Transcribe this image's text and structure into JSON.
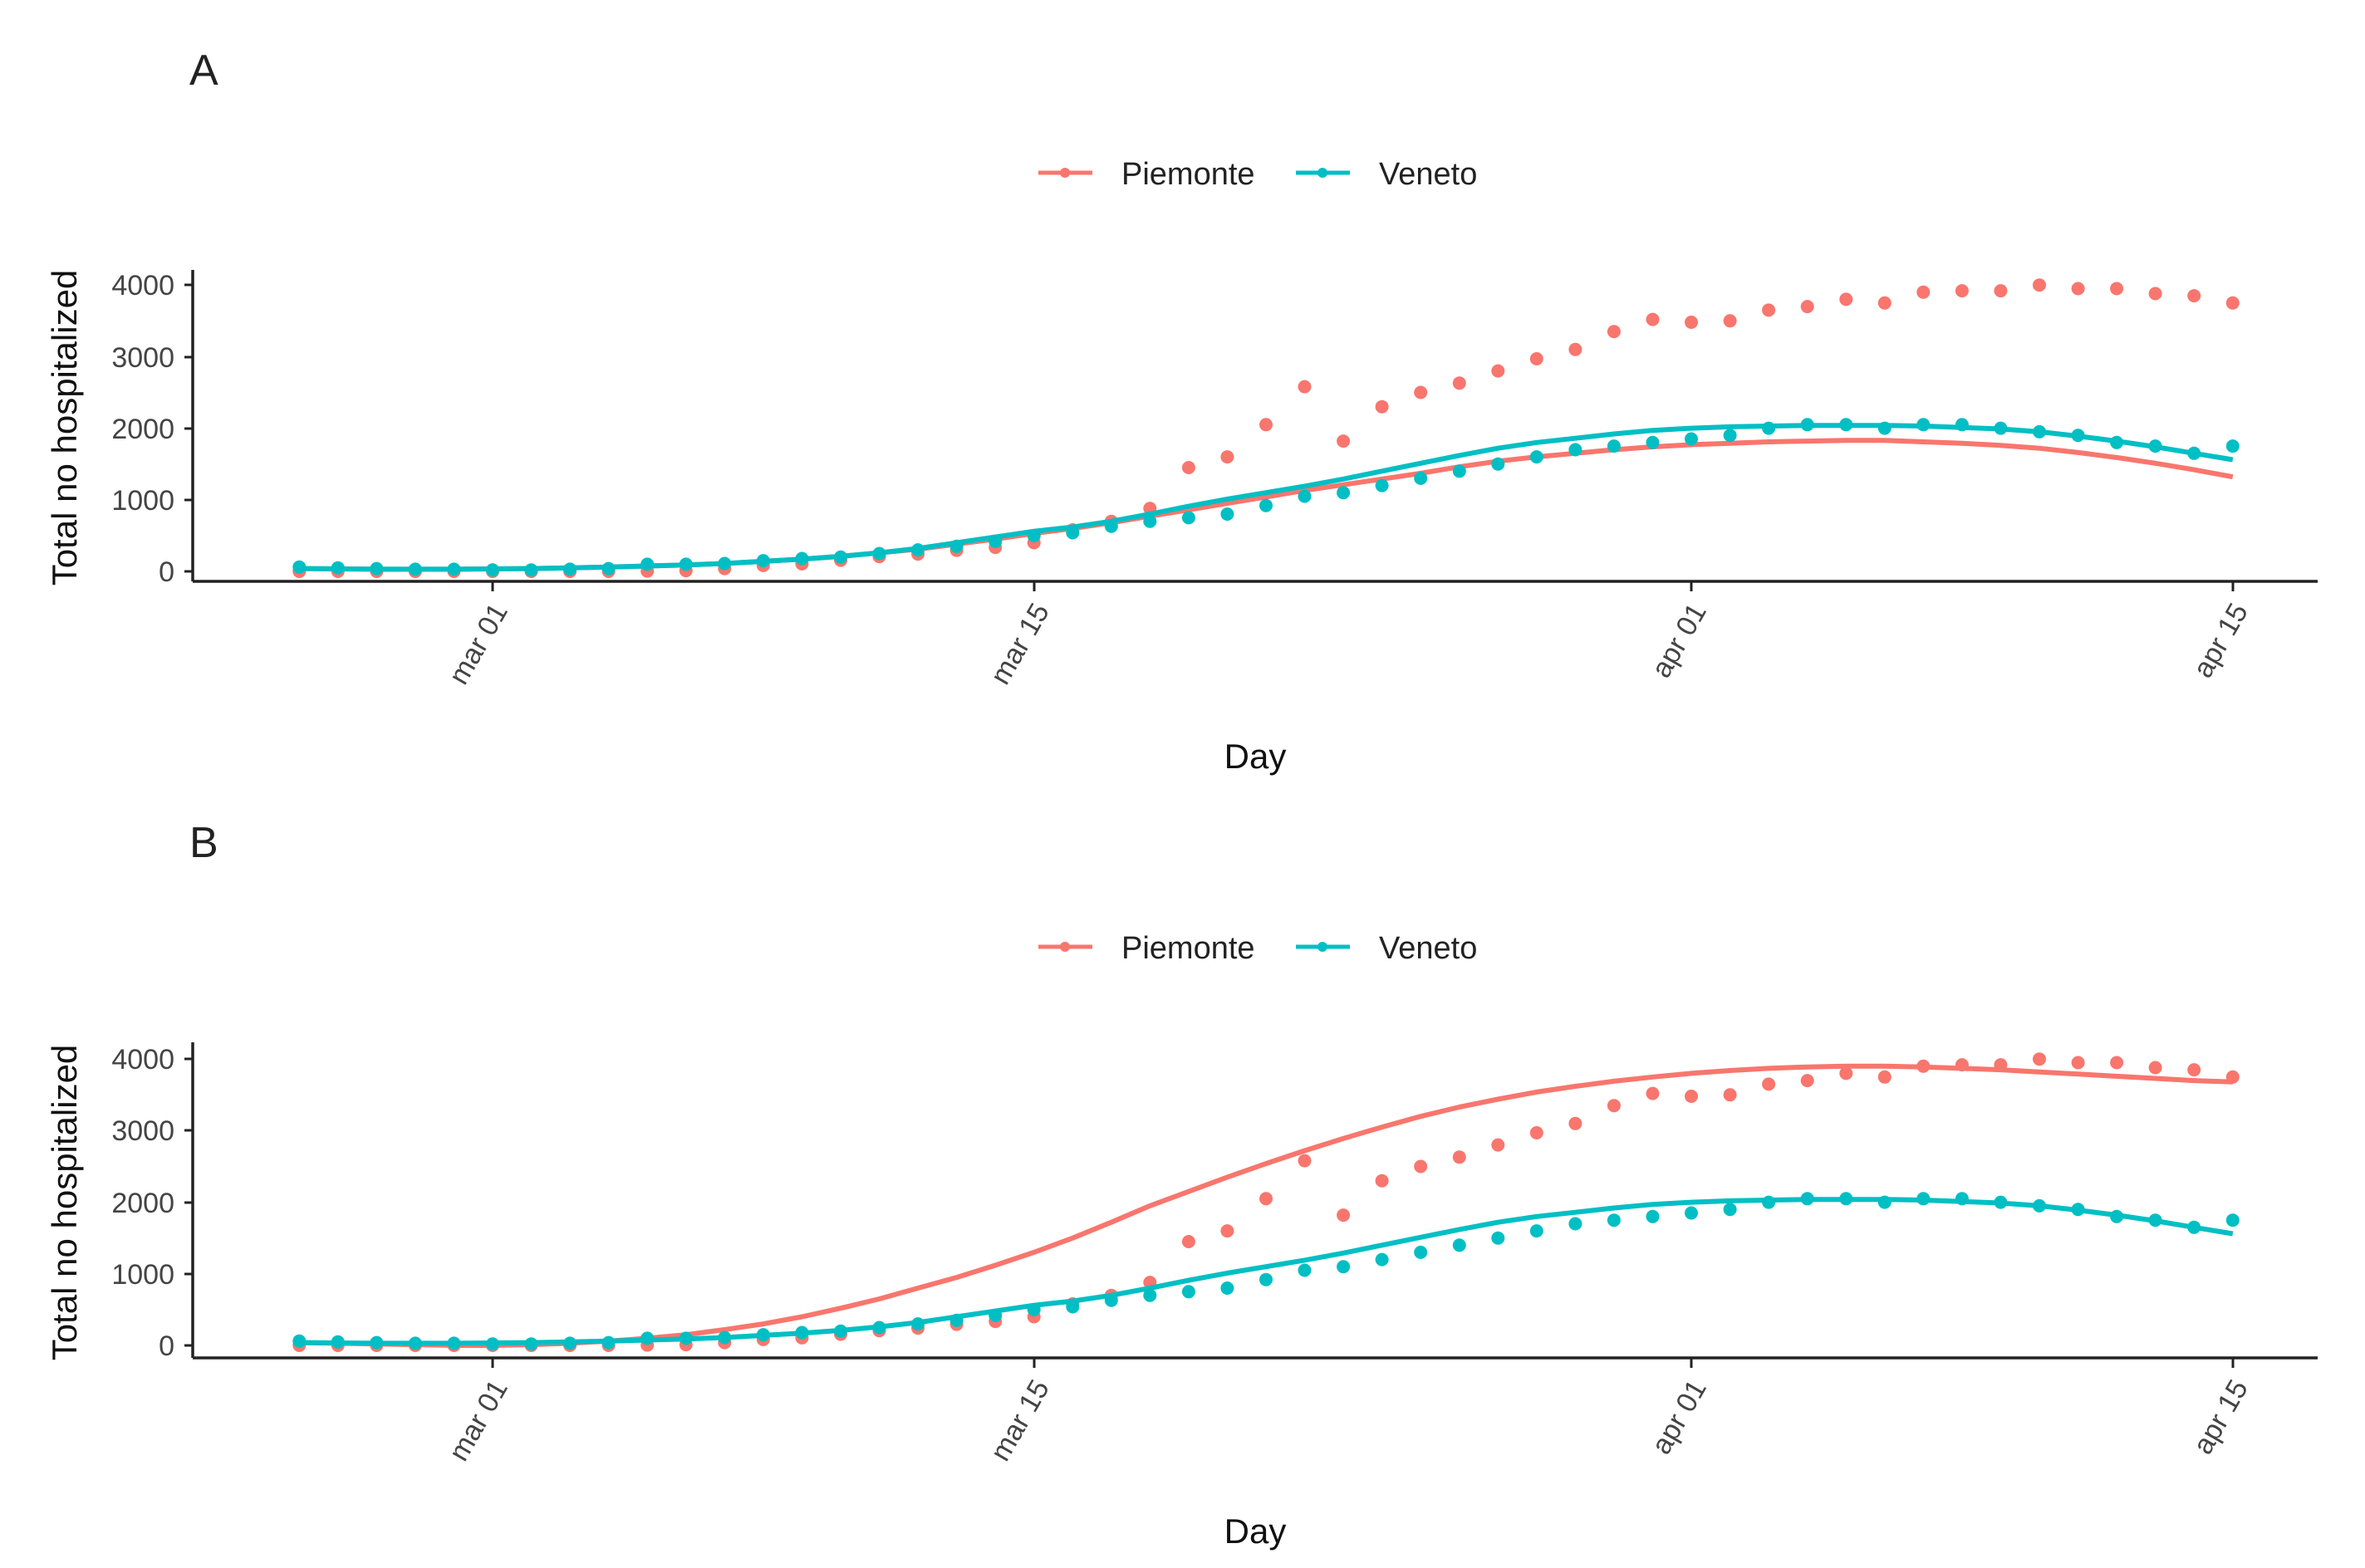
{
  "colors": {
    "piemonte": "#F8766D",
    "veneto": "#00BFC4"
  },
  "chart_data": [
    {
      "panel": "A",
      "type": "line",
      "xlabel": "Day",
      "ylabel": "Total no hospitalized",
      "yticks": [
        "0",
        "1000",
        "2000",
        "3000",
        "4000"
      ],
      "ylim": [
        0,
        4000
      ],
      "xticks": [
        "mar 01",
        "mar 15",
        "apr 01",
        "apr 15"
      ],
      "x": [
        -5,
        -4,
        -3,
        -2,
        -1,
        0,
        1,
        2,
        3,
        4,
        5,
        6,
        7,
        8,
        9,
        10,
        11,
        12,
        13,
        14,
        15,
        16,
        17,
        18,
        19,
        20,
        21,
        22,
        23,
        24,
        25,
        26,
        27,
        28,
        29,
        30,
        31,
        32,
        33,
        34,
        35,
        36,
        37,
        38,
        39,
        40,
        41,
        42,
        43,
        44,
        45
      ],
      "series": [
        {
          "name": "Piemonte",
          "observed": [
            0,
            0,
            0,
            0,
            0,
            0,
            0,
            0,
            0,
            5,
            11,
            40,
            82,
            105,
            155,
            207,
            243,
            295,
            335,
            400,
            580,
            700,
            880,
            1450,
            1600,
            2050,
            2580,
            1820,
            2300,
            2500,
            2630,
            2800,
            2970,
            3100,
            3350,
            3520,
            3480,
            3500,
            3650,
            3700,
            3800,
            3750,
            3900,
            3920,
            3920,
            4000,
            3950,
            3950,
            3880,
            3850,
            3750
          ],
          "fitted": [
            40,
            35,
            30,
            30,
            30,
            35,
            40,
            50,
            60,
            75,
            90,
            110,
            140,
            170,
            210,
            260,
            310,
            380,
            450,
            530,
            600,
            680,
            770,
            860,
            950,
            1040,
            1130,
            1210,
            1290,
            1370,
            1460,
            1540,
            1600,
            1650,
            1700,
            1740,
            1770,
            1790,
            1810,
            1820,
            1830,
            1830,
            1810,
            1790,
            1760,
            1720,
            1660,
            1590,
            1510,
            1420,
            1320
          ]
        },
        {
          "name": "Veneto",
          "observed": [
            60,
            50,
            40,
            30,
            30,
            20,
            20,
            30,
            40,
            100,
            100,
            110,
            150,
            180,
            200,
            250,
            300,
            350,
            420,
            500,
            540,
            630,
            700,
            750,
            800,
            920,
            1050,
            1100,
            1200,
            1300,
            1400,
            1500,
            1600,
            1700,
            1750,
            1800,
            1850,
            1900,
            2000,
            2050,
            2050,
            2000,
            2050,
            2050,
            2000,
            1950,
            1900,
            1800,
            1750,
            1650,
            1750
          ],
          "fitted": [
            40,
            35,
            30,
            30,
            30,
            35,
            40,
            50,
            60,
            75,
            90,
            110,
            140,
            170,
            210,
            260,
            320,
            400,
            480,
            560,
            620,
            700,
            800,
            910,
            1010,
            1100,
            1190,
            1290,
            1400,
            1510,
            1620,
            1720,
            1800,
            1860,
            1920,
            1970,
            2000,
            2020,
            2030,
            2040,
            2040,
            2040,
            2030,
            2010,
            1990,
            1950,
            1890,
            1820,
            1740,
            1650,
            1560
          ]
        }
      ]
    },
    {
      "panel": "B",
      "type": "line",
      "xlabel": "Day",
      "ylabel": "Total no hospitalized",
      "yticks": [
        "0",
        "1000",
        "2000",
        "3000",
        "4000"
      ],
      "ylim": [
        0,
        4000
      ],
      "xticks": [
        "mar 01",
        "mar 15",
        "apr 01",
        "apr 15"
      ],
      "x": [
        -5,
        -4,
        -3,
        -2,
        -1,
        0,
        1,
        2,
        3,
        4,
        5,
        6,
        7,
        8,
        9,
        10,
        11,
        12,
        13,
        14,
        15,
        16,
        17,
        18,
        19,
        20,
        21,
        22,
        23,
        24,
        25,
        26,
        27,
        28,
        29,
        30,
        31,
        32,
        33,
        34,
        35,
        36,
        37,
        38,
        39,
        40,
        41,
        42,
        43,
        44,
        45
      ],
      "series": [
        {
          "name": "Piemonte",
          "observed": [
            0,
            0,
            0,
            0,
            0,
            0,
            0,
            0,
            0,
            5,
            11,
            40,
            82,
            105,
            155,
            207,
            243,
            295,
            335,
            400,
            580,
            700,
            880,
            1450,
            1600,
            2050,
            2580,
            1820,
            2300,
            2500,
            2630,
            2800,
            2970,
            3100,
            3350,
            3520,
            3480,
            3500,
            3650,
            3700,
            3800,
            3750,
            3900,
            3920,
            3920,
            4000,
            3950,
            3950,
            3880,
            3850,
            3750
          ],
          "fitted": [
            40,
            30,
            20,
            10,
            0,
            0,
            10,
            30,
            60,
            100,
            150,
            220,
            300,
            400,
            520,
            650,
            800,
            950,
            1120,
            1300,
            1500,
            1720,
            1950,
            2150,
            2350,
            2540,
            2720,
            2890,
            3050,
            3200,
            3330,
            3440,
            3540,
            3620,
            3690,
            3750,
            3800,
            3840,
            3870,
            3890,
            3900,
            3900,
            3890,
            3870,
            3850,
            3820,
            3790,
            3760,
            3730,
            3700,
            3680
          ]
        },
        {
          "name": "Veneto",
          "observed": [
            60,
            50,
            40,
            30,
            30,
            20,
            20,
            30,
            40,
            100,
            100,
            110,
            150,
            180,
            200,
            250,
            300,
            350,
            420,
            500,
            540,
            630,
            700,
            750,
            800,
            920,
            1050,
            1100,
            1200,
            1300,
            1400,
            1500,
            1600,
            1700,
            1750,
            1800,
            1850,
            1900,
            2000,
            2050,
            2050,
            2000,
            2050,
            2050,
            2000,
            1950,
            1900,
            1800,
            1750,
            1650,
            1750
          ],
          "fitted": [
            40,
            35,
            30,
            30,
            30,
            35,
            40,
            50,
            60,
            75,
            90,
            110,
            140,
            170,
            210,
            260,
            320,
            400,
            480,
            560,
            620,
            700,
            800,
            910,
            1010,
            1100,
            1190,
            1290,
            1400,
            1510,
            1620,
            1720,
            1800,
            1860,
            1920,
            1970,
            2000,
            2020,
            2030,
            2040,
            2040,
            2040,
            2030,
            2010,
            1990,
            1950,
            1890,
            1820,
            1740,
            1650,
            1560
          ]
        }
      ]
    }
  ]
}
